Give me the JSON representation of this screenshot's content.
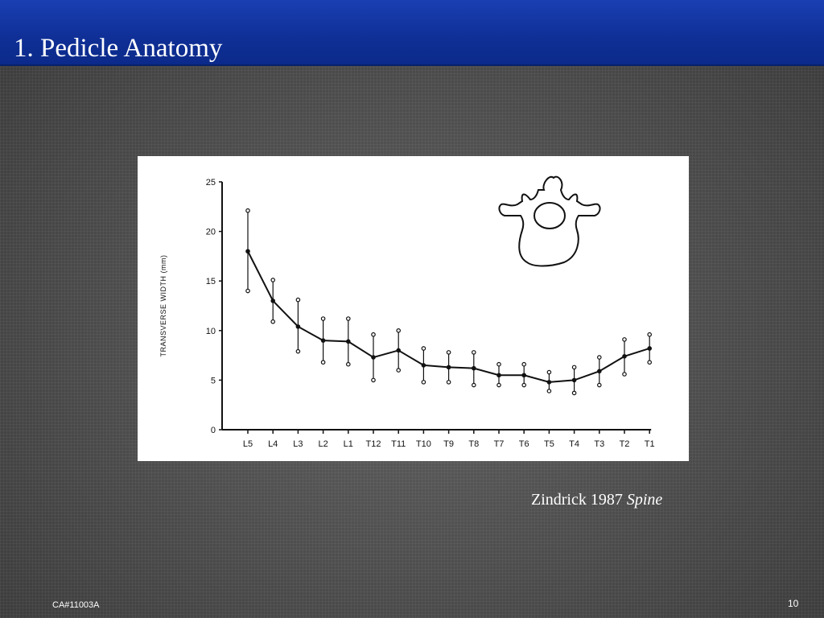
{
  "slide": {
    "title": "1. Pedicle Anatomy",
    "caption_text": "Zindrick 1987 ",
    "caption_journal": "Spine",
    "footer_left": "CA#11003A",
    "page_number": "10"
  },
  "colors": {
    "title_bar": "#0f2f96",
    "background": "#4a4a4a",
    "text": "#ffffff",
    "chart_ink": "#111111"
  },
  "chart_data": {
    "type": "line",
    "title": "",
    "xlabel": "",
    "ylabel": "TRANSVERSE WIDTH (mm)",
    "ylim": [
      0,
      25
    ],
    "yticks": [
      0,
      5,
      10,
      15,
      20,
      25
    ],
    "grid": false,
    "categories": [
      "L5",
      "L4",
      "L3",
      "L2",
      "L1",
      "T12",
      "T11",
      "T10",
      "T9",
      "T8",
      "T7",
      "T6",
      "T5",
      "T4",
      "T3",
      "T2",
      "T1"
    ],
    "series": [
      {
        "values": [
          18.0,
          13.0,
          10.4,
          9.0,
          8.9,
          7.3,
          8.0,
          6.5,
          6.3,
          6.2,
          5.5,
          5.5,
          4.8,
          5.0,
          5.9,
          7.4,
          8.2
        ],
        "upper": [
          22.1,
          15.1,
          13.1,
          11.2,
          11.2,
          9.6,
          10.0,
          8.2,
          7.8,
          7.8,
          6.6,
          6.6,
          5.8,
          6.3,
          7.3,
          9.1,
          9.6
        ],
        "lower": [
          14.0,
          10.9,
          7.9,
          6.8,
          6.6,
          5.0,
          6.0,
          4.8,
          4.8,
          4.5,
          4.5,
          4.5,
          3.9,
          3.7,
          4.5,
          5.6,
          6.8
        ]
      }
    ]
  }
}
